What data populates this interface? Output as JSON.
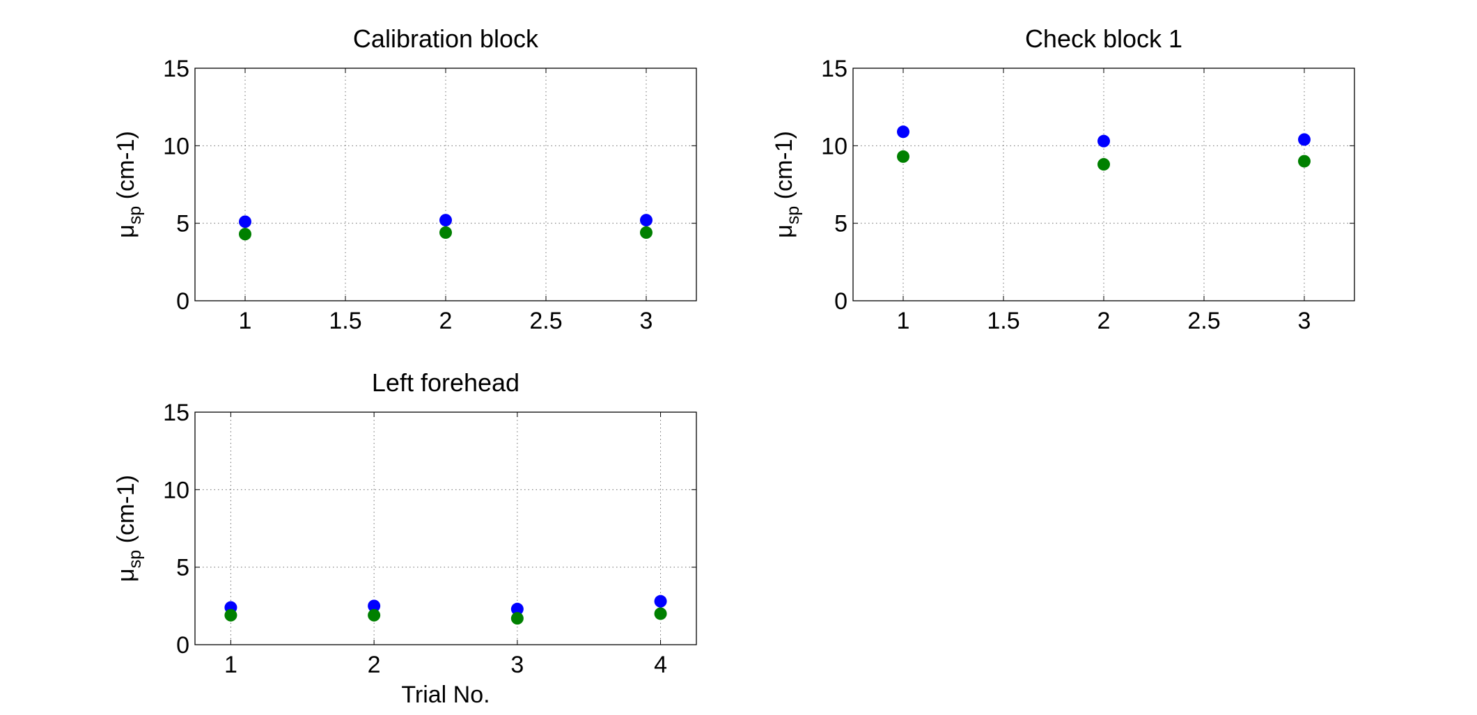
{
  "chart_data": [
    {
      "type": "scatter",
      "title": "Calibration block",
      "xlabel": "",
      "ylabel": "μ",
      "ylabel_sub": "sp",
      "ylabel_unit": " (cm-1)",
      "xlim": [
        0.75,
        3.25
      ],
      "ylim": [
        0,
        15
      ],
      "xticks": [
        1,
        1.5,
        2,
        2.5,
        3
      ],
      "yticks": [
        0,
        5,
        10,
        15
      ],
      "grid": true,
      "series": [
        {
          "color": "#0000ff",
          "x": [
            1,
            2,
            3
          ],
          "y": [
            5.1,
            5.2,
            5.2
          ]
        },
        {
          "color": "#008000",
          "x": [
            1,
            2,
            3
          ],
          "y": [
            4.3,
            4.4,
            4.4
          ]
        }
      ]
    },
    {
      "type": "scatter",
      "title": "Check block 1",
      "xlabel": "",
      "ylabel": "μ",
      "ylabel_sub": "sp",
      "ylabel_unit": " (cm-1)",
      "xlim": [
        0.75,
        3.25
      ],
      "ylim": [
        0,
        15
      ],
      "xticks": [
        1,
        1.5,
        2,
        2.5,
        3
      ],
      "yticks": [
        0,
        5,
        10,
        15
      ],
      "grid": true,
      "series": [
        {
          "color": "#0000ff",
          "x": [
            1,
            2,
            3
          ],
          "y": [
            10.9,
            10.3,
            10.4
          ]
        },
        {
          "color": "#008000",
          "x": [
            1,
            2,
            3
          ],
          "y": [
            9.3,
            8.8,
            9.0
          ]
        }
      ]
    },
    {
      "type": "scatter",
      "title": "Left forehead",
      "xlabel": "Trial No.",
      "ylabel": "μ",
      "ylabel_sub": "sp",
      "ylabel_unit": " (cm-1)",
      "xlim": [
        0.75,
        4.25
      ],
      "ylim": [
        0,
        15
      ],
      "xticks": [
        1,
        2,
        3,
        4
      ],
      "yticks": [
        0,
        5,
        10,
        15
      ],
      "grid": true,
      "series": [
        {
          "color": "#0000ff",
          "x": [
            1,
            2,
            3,
            4
          ],
          "y": [
            2.4,
            2.5,
            2.3,
            2.8
          ]
        },
        {
          "color": "#008000",
          "x": [
            1,
            2,
            3,
            4
          ],
          "y": [
            1.9,
            1.9,
            1.7,
            2.0
          ]
        }
      ]
    }
  ]
}
